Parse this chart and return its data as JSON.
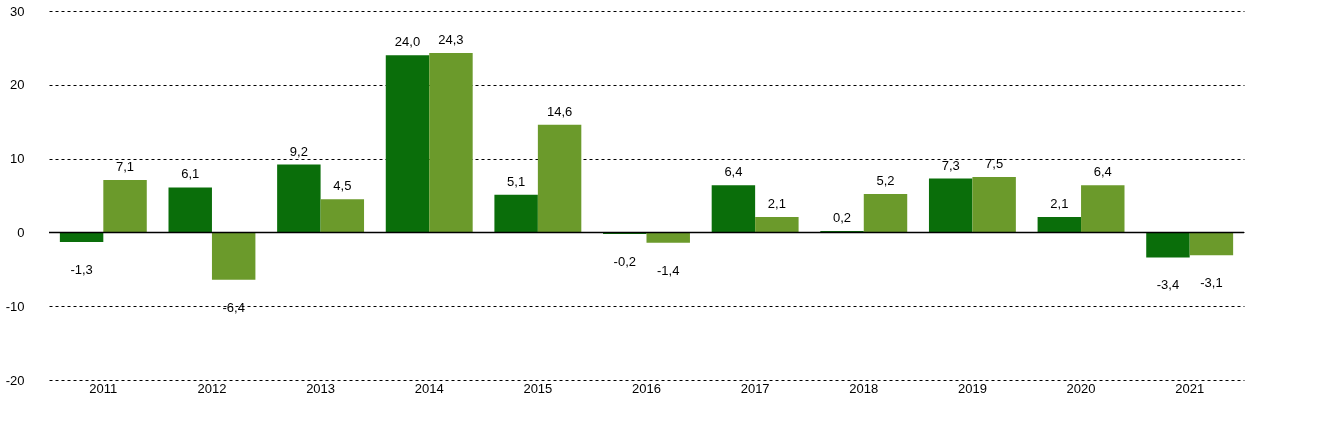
{
  "chart_data": {
    "type": "bar",
    "categories": [
      "2011",
      "2012",
      "2013",
      "2014",
      "2015",
      "2016",
      "2017",
      "2018",
      "2019",
      "2020",
      "2021"
    ],
    "series": [
      {
        "color": "#0a6e0a",
        "values": [
          -1.3,
          6.1,
          9.2,
          24.0,
          5.1,
          -0.2,
          6.4,
          0.2,
          7.3,
          2.1,
          -3.4
        ],
        "value_labels": [
          "-1,3",
          "6,1",
          "9,2",
          "24,0",
          "5,1",
          "-0,2",
          "6,4",
          "0,2",
          "7,3",
          "2,1",
          "-3,4"
        ]
      },
      {
        "color": "#6b9a2b",
        "values": [
          7.1,
          -6.4,
          4.5,
          24.3,
          14.6,
          -1.4,
          2.1,
          5.2,
          7.5,
          6.4,
          -3.1
        ],
        "value_labels": [
          "7,1",
          "-6,4",
          "4,5",
          "24,3",
          "14,6",
          "-1,4",
          "2,1",
          "5,2",
          "7,5",
          "6,4",
          "-3,1"
        ]
      }
    ],
    "ylim": [
      -20,
      30
    ],
    "yticks": [
      -20,
      -10,
      0,
      10,
      20,
      30
    ],
    "grid": "y",
    "legend": false
  }
}
